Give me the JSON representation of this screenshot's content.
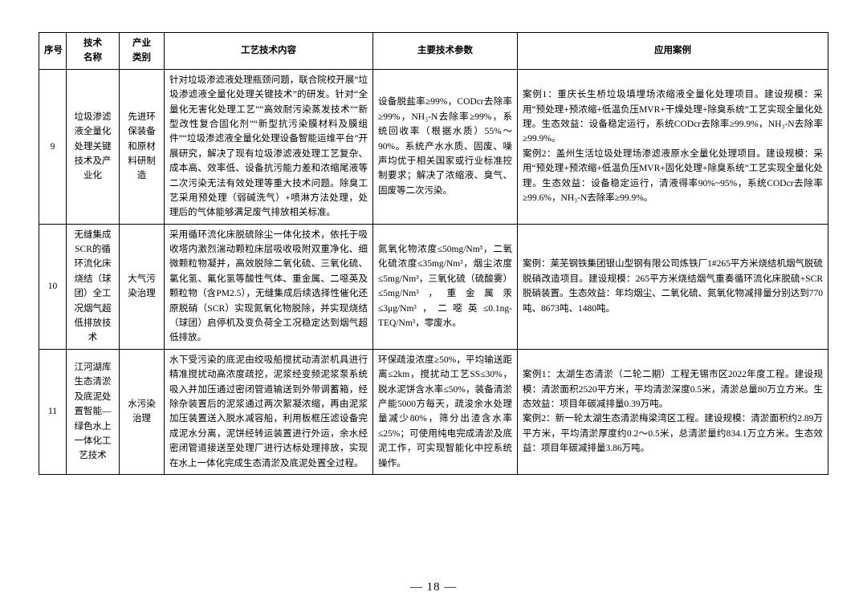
{
  "headers": {
    "seq": "序号",
    "name": "技术\n名称",
    "cat": "产业\n类别",
    "tech": "工艺技术内容",
    "param": "主要技术参数",
    "case": "应用案例"
  },
  "rows": [
    {
      "seq": "9",
      "name": "垃圾渗滤液全量化处理关键技术及产业化",
      "cat": "先进环保装备和原材料研制造",
      "tech": "针对垃圾渗滤液处理瓶颈问题，联合院校开展“垃圾渗滤液全量化处理关键技术”的研发。针对“全量化无害化处理工艺”“高效耐污染蒸发技术”“新型改性复合固化剂”“新型抗污染膜材料及膜组件”“垃圾渗滤液全量化处理设备智能运维平台”开展研究，解决了现有垃圾渗滤液处理工艺复杂、成本高、效率低、设备抗污能力差和浓缩尾液等二次污染无法有效处理等重大技术问题。除臭工艺采用预处理（弱碱洗气）+喷淋方法处理，处理后的气体能够满足废气排放相关标准。",
      "param": "设备脱盐率≥99%，CODcr去除率≥99%，NH₃-N去除率≥99%，系统回收率（根据水质）55%～90%。系统产水水质、固废、噪声均优于相关国家或行业标准控制要求；解决了浓缩液、臭气、固废等二次污染。",
      "case": "案例1：重庆长生桥垃圾填埋场浓缩液全量化处理项目。建设规模：采用“预处理+预浓缩+低温负压MVR+干燥处理+除臭系统”工艺实现全量化处理。生态效益：设备稳定运行，系统CODcr去除率≥99.9%，NH₃-N去除率≥99.9%。\n案例2：盖州生活垃圾处理场渗滤液原水全量化处理项目。建设规模：采用“预处理+预浓缩+低温负压MVR+固化处理+除臭系统”工艺实现全量化处理。生态效益：设备稳定运行，清液得率90%~95%，系统CODcr去除率≥99.6%，NH₃-N去除率≥99.9%。"
    },
    {
      "seq": "10",
      "name": "无缝集成SCR的循环流化床烧结（球团）全工况烟气超低排放技术",
      "cat": "大气污染治理",
      "tech": "采用循环流化床脱硫除尘一体化技术，依托于吸收塔内激烈湍动颗粒床层吸收吸附双重净化、细微颗粒物凝并，高效脱除二氧化硫、三氧化硫、氯化氢、氟化氢等酸性气体、重金属、二噁英及颗粒物（含PM2.5），无缝集成后续选择性催化还原脱硝（SCR）实现氮氧化物脱除，并实现烧结（球团）启停机及变负荷全工况稳定达到烟气超低排放。",
      "param": "氮氧化物浓度≤50mg/Nm³，二氧化硫浓度≤35mg/Nm³，烟尘浓度≤5mg/Nm³，三氧化硫（硫酸雾）≤5mg/Nm³，重金属汞≤3μg/Nm³，二噁英≤0.1ng-TEQ/Nm³，零废水。",
      "case": "案例：莱芜钢铁集团银山型钢有限公司炼铁厂1#265平方米烧结机烟气脱硫脱硝改造项目。建设规模：265平方米烧结烟气重奏循环流化床脱硫+SCR脱硝装置。生态效益：年均烟尘、二氧化硫、氮氧化物减排量分别达到770吨、8673吨、1480吨。"
    },
    {
      "seq": "11",
      "name": "江河湖库生态清淤及底泥处置智能—绿色水上一体化工艺技术",
      "cat": "水污染治理",
      "tech": "水下受污染的底泥由绞吸船搅扰动清淤机具进行精准搅扰动高浓度疏挖，泥浆经变频泥浆泵系统吸入并加压通过密闭管道输送到外带调蓄箱，经除杂装置后的泥浆通过两次絮凝浓缩，再由泥浆加压装置送入脱水减容船，利用板框压滤设备完成泥水分离，泥饼经转运装置进行外运，余水经密闭管道接送至处理厂进行达标处理排放，实现在水上一体化完成生态清淤及底泥处置全过程。",
      "param": "环保疏浚浓度≥50%，平均输送距离≤2km，搅扰动工艺SS≤30%，脱水泥饼含水率≤50%，装备清淤产能5000方每天，疏浚余水处理量减少80%，筛分出渣含水率≤25%；可使用纯电完成清淤及底泥工作，可实现智能化中控系统操作。",
      "case": "案例1：太湖生态清淤（二轮二期）工程无锡市区2022年度工程。建设规模：清淤面积2520平方米，平均清淤深度0.5米，清淤总量80万立方米。生态效益：项目年碳减排量0.39万吨。\n案例2：新一轮太湖生态清淤梅梁湾区工程。建设规模：清淤面积约2.89万平方米，平均清淤厚度约0.2～0.5米，总清淤量约834.1万立方米。生态效益：项目年碳减排量3.86万吨。"
    }
  ],
  "page_number": "— 18 —"
}
